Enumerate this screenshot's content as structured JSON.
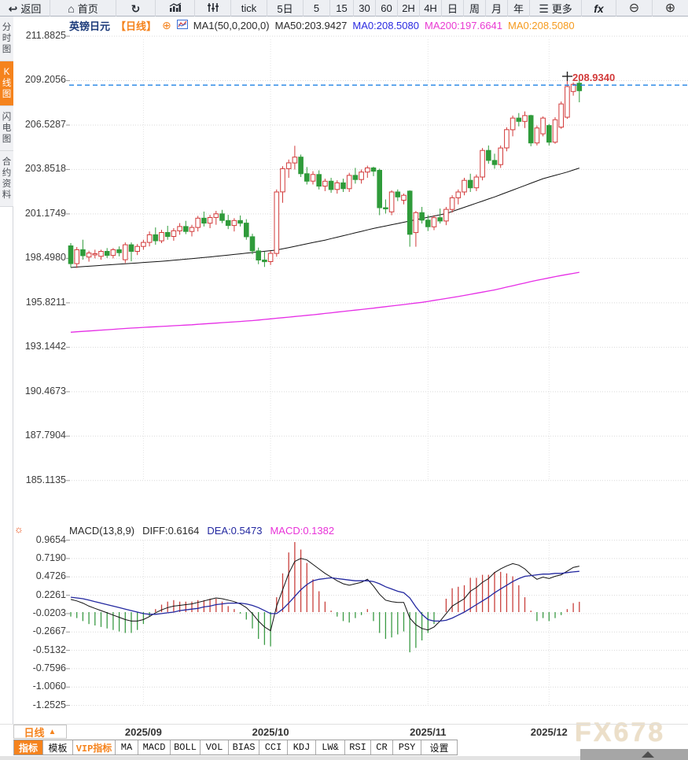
{
  "toolbar": {
    "items": [
      {
        "id": "back",
        "icon": "back-icon",
        "glyph": "↩",
        "label": "返回"
      },
      {
        "id": "home",
        "icon": "home-icon",
        "glyph": "⌂",
        "label": "首页"
      },
      {
        "id": "refresh",
        "icon": "refresh-icon",
        "glyph": "↻",
        "label": ""
      },
      {
        "id": "bar-chart",
        "icon": "bar-chart-icon",
        "glyph": "svg-bars",
        "label": ""
      },
      {
        "id": "candle-chart",
        "icon": "candlestick-icon",
        "glyph": "svg-candles",
        "label": ""
      },
      {
        "id": "tick",
        "label": "tick"
      },
      {
        "id": "5d",
        "label": "5日"
      },
      {
        "id": "m5",
        "label": "5"
      },
      {
        "id": "m15",
        "label": "15"
      },
      {
        "id": "m30",
        "label": "30"
      },
      {
        "id": "m60",
        "label": "60"
      },
      {
        "id": "h2",
        "label": "2H"
      },
      {
        "id": "h4",
        "label": "4H"
      },
      {
        "id": "day",
        "label": "日"
      },
      {
        "id": "week",
        "label": "周"
      },
      {
        "id": "month",
        "label": "月"
      },
      {
        "id": "year",
        "label": "年"
      },
      {
        "id": "more",
        "icon": "menu-icon",
        "glyph": "☰",
        "label": "更多"
      },
      {
        "id": "fx",
        "label": "fx"
      },
      {
        "id": "zoom-out",
        "icon": "zoom-out-icon",
        "glyph": "⊖",
        "label": ""
      },
      {
        "id": "zoom-in",
        "icon": "zoom-in-icon",
        "glyph": "⊕",
        "label": ""
      }
    ]
  },
  "sidebar": {
    "items": [
      {
        "id": "fenshi",
        "label": "分时图",
        "active": false
      },
      {
        "id": "kline",
        "label": "K线图",
        "active": true
      },
      {
        "id": "flash",
        "label": "闪电图",
        "active": false
      },
      {
        "id": "contract-info",
        "label": "合约资料",
        "active": false
      }
    ]
  },
  "chart_header": {
    "symbol": "英镑日元",
    "period": "【日线】",
    "ma_formula": "MA1(50,0,200,0)",
    "ma50": "MA50:203.9427",
    "ma0_blue": "MA0:208.5080",
    "ma200": "MA200:197.6641",
    "ma0_orange": "MA0:208.5080"
  },
  "macd_header": {
    "formula": "MACD(13,8,9)",
    "diff": "DIFF:0.6164",
    "dea": "DEA:0.5473",
    "macd": "MACD:0.1382"
  },
  "period_selector": {
    "label": "日线",
    "arrow": "▲"
  },
  "bottom_tabs": [
    {
      "id": "zhibiao",
      "label": "指标",
      "state": "active"
    },
    {
      "id": "moban",
      "label": "模板",
      "state": "normal"
    },
    {
      "id": "vip-zhibiao",
      "label": "VIP指标",
      "state": "vip"
    },
    {
      "id": "ma",
      "label": "MA",
      "state": "normal"
    },
    {
      "id": "macd",
      "label": "MACD",
      "state": "normal"
    },
    {
      "id": "boll",
      "label": "BOLL",
      "state": "normal"
    },
    {
      "id": "vol",
      "label": "VOL",
      "state": "normal"
    },
    {
      "id": "bias",
      "label": "BIAS",
      "state": "normal"
    },
    {
      "id": "cci",
      "label": "CCI",
      "state": "normal"
    },
    {
      "id": "kdj",
      "label": "KDJ",
      "state": "normal"
    },
    {
      "id": "lwr",
      "label": "LW&",
      "state": "normal"
    },
    {
      "id": "rsi",
      "label": "RSI",
      "state": "normal"
    },
    {
      "id": "cr",
      "label": "CR",
      "state": "normal"
    },
    {
      "id": "psy",
      "label": "PSY",
      "state": "normal"
    },
    {
      "id": "shezhi",
      "label": "设置",
      "state": "normal"
    }
  ],
  "watermark": "FX678",
  "colors": {
    "accent_orange": "#f5831d",
    "candle_up": "#d23a3a",
    "candle_down": "#2f9b3a",
    "ma50_line": "#111111",
    "ma200_line": "#e62ee6",
    "diff_line": "#111111",
    "dea_line": "#2328a0",
    "hist_up": "#c9403c",
    "hist_down": "#3a9a44",
    "last_price_line": "#1f82e5",
    "last_price_text": "#d23a3a",
    "grid": "#d9d9d9"
  },
  "chart_data": [
    {
      "type": "candlestick",
      "title": "英镑日元 日线",
      "ylabel": "price",
      "y_ticks": [
        211.8825,
        209.2056,
        206.5287,
        203.8518,
        201.1749,
        198.498,
        195.8211,
        193.1442,
        190.4673,
        187.7904,
        185.1135
      ],
      "x_labels": [
        {
          "label": "2025/09",
          "index": 12
        },
        {
          "label": "2025/10",
          "index": 33
        },
        {
          "label": "2025/11",
          "index": 59
        },
        {
          "label": "2025/12",
          "index": 79
        }
      ],
      "last_price": 208.934,
      "last_price_label": "208.9340",
      "candles": [
        [
          199.25,
          199.42,
          197.95,
          198.18
        ],
        [
          198.18,
          199.18,
          197.92,
          199.02
        ],
        [
          199.02,
          199.62,
          198.42,
          198.66
        ],
        [
          198.58,
          198.96,
          198.3,
          198.82
        ],
        [
          198.72,
          199.02,
          198.5,
          198.78
        ],
        [
          198.62,
          199.02,
          198.42,
          198.92
        ],
        [
          198.92,
          199.12,
          198.52,
          198.68
        ],
        [
          198.68,
          199.12,
          198.5,
          199.02
        ],
        [
          199.02,
          199.22,
          198.62,
          198.84
        ],
        [
          198.42,
          199.46,
          198.22,
          199.32
        ],
        [
          199.32,
          199.46,
          198.32,
          198.92
        ],
        [
          198.92,
          199.36,
          198.7,
          199.22
        ],
        [
          199.22,
          199.62,
          199.02,
          199.46
        ],
        [
          199.46,
          200.12,
          199.22,
          199.92
        ],
        [
          199.92,
          200.36,
          199.32,
          199.56
        ],
        [
          199.56,
          200.22,
          199.42,
          200.06
        ],
        [
          200.06,
          200.46,
          199.62,
          199.82
        ],
        [
          199.82,
          200.32,
          199.56,
          200.16
        ],
        [
          200.16,
          200.62,
          199.92,
          200.42
        ],
        [
          200.42,
          200.76,
          199.96,
          200.12
        ],
        [
          200.12,
          200.52,
          199.82,
          200.36
        ],
        [
          200.36,
          201.06,
          200.12,
          200.92
        ],
        [
          200.92,
          201.32,
          200.42,
          200.62
        ],
        [
          200.62,
          201.12,
          200.32,
          200.96
        ],
        [
          200.96,
          201.36,
          200.52,
          201.18
        ],
        [
          201.18,
          201.42,
          200.62,
          200.78
        ],
        [
          200.78,
          201.12,
          200.26,
          200.48
        ],
        [
          200.48,
          200.92,
          200.12,
          200.78
        ],
        [
          200.78,
          201.08,
          200.42,
          200.62
        ],
        [
          200.62,
          200.86,
          199.62,
          199.8
        ],
        [
          199.8,
          199.98,
          198.75,
          198.95
        ],
        [
          198.95,
          199.15,
          198.15,
          198.4
        ],
        [
          198.4,
          198.9,
          197.98,
          198.3
        ],
        [
          198.3,
          198.95,
          198.1,
          198.8
        ],
        [
          198.8,
          202.65,
          198.6,
          202.5
        ],
        [
          202.5,
          204.05,
          201.85,
          203.9
        ],
        [
          203.9,
          204.45,
          203.35,
          204.25
        ],
        [
          204.25,
          205.28,
          203.85,
          204.6
        ],
        [
          204.6,
          204.75,
          203.4,
          203.6
        ],
        [
          203.6,
          204.0,
          202.95,
          203.15
        ],
        [
          203.15,
          203.75,
          202.95,
          203.55
        ],
        [
          203.55,
          203.8,
          202.65,
          202.85
        ],
        [
          202.85,
          203.3,
          202.55,
          203.15
        ],
        [
          203.15,
          203.35,
          202.45,
          202.65
        ],
        [
          202.65,
          203.2,
          202.4,
          203.05
        ],
        [
          203.05,
          203.3,
          202.5,
          202.7
        ],
        [
          202.7,
          203.65,
          202.5,
          203.5
        ],
        [
          203.5,
          203.95,
          203.0,
          203.25
        ],
        [
          203.25,
          203.85,
          203.0,
          203.7
        ],
        [
          203.7,
          204.08,
          203.35,
          203.95
        ],
        [
          203.95,
          204.02,
          203.45,
          203.75
        ],
        [
          203.8,
          203.9,
          201.1,
          201.55
        ],
        [
          201.55,
          202.05,
          201.2,
          201.5
        ],
        [
          201.3,
          202.6,
          201.1,
          202.5
        ],
        [
          202.5,
          202.65,
          201.95,
          202.2
        ],
        [
          202.0,
          202.4,
          201.75,
          202.3
        ],
        [
          202.55,
          202.6,
          199.2,
          199.95
        ],
        [
          200.05,
          201.35,
          199.2,
          201.25
        ],
        [
          201.25,
          201.6,
          200.6,
          200.8
        ],
        [
          200.8,
          201.1,
          200.15,
          200.4
        ],
        [
          200.4,
          201.1,
          200.2,
          200.95
        ],
        [
          200.95,
          201.5,
          200.6,
          200.75
        ],
        [
          200.75,
          201.6,
          200.5,
          201.45
        ],
        [
          201.45,
          202.3,
          201.25,
          202.15
        ],
        [
          202.15,
          202.65,
          201.75,
          202.5
        ],
        [
          202.5,
          203.35,
          202.3,
          203.2
        ],
        [
          203.2,
          203.6,
          202.5,
          202.75
        ],
        [
          202.75,
          203.55,
          202.55,
          203.4
        ],
        [
          203.4,
          205.15,
          203.2,
          205.0
        ],
        [
          205.0,
          205.3,
          204.2,
          204.4
        ],
        [
          204.4,
          204.8,
          203.9,
          204.15
        ],
        [
          204.15,
          205.3,
          203.95,
          205.15
        ],
        [
          205.15,
          206.4,
          204.95,
          206.25
        ],
        [
          206.25,
          207.1,
          205.85,
          206.95
        ],
        [
          206.95,
          207.25,
          206.45,
          206.75
        ],
        [
          206.75,
          207.35,
          206.35,
          207.1
        ],
        [
          207.1,
          207.15,
          205.25,
          205.45
        ],
        [
          205.45,
          206.5,
          205.3,
          206.35
        ],
        [
          206.0,
          207.05,
          205.85,
          206.95
        ],
        [
          206.5,
          206.6,
          205.3,
          205.5
        ],
        [
          205.5,
          207.0,
          205.4,
          206.85
        ],
        [
          206.4,
          207.95,
          206.3,
          207.8
        ],
        [
          207.0,
          209.28,
          206.9,
          208.85
        ],
        [
          208.55,
          209.1,
          208.3,
          208.98
        ],
        [
          209.05,
          209.4,
          207.9,
          208.6
        ]
      ],
      "ma50_points": [
        [
          0,
          197.95
        ],
        [
          8,
          198.15
        ],
        [
          16,
          198.35
        ],
        [
          24,
          198.62
        ],
        [
          30,
          198.85
        ],
        [
          34,
          199.0
        ],
        [
          38,
          199.3
        ],
        [
          42,
          199.6
        ],
        [
          46,
          199.95
        ],
        [
          50,
          200.3
        ],
        [
          54,
          200.6
        ],
        [
          58,
          200.9
        ],
        [
          62,
          201.2
        ],
        [
          66,
          201.7
        ],
        [
          70,
          202.2
        ],
        [
          74,
          202.75
        ],
        [
          78,
          203.3
        ],
        [
          82,
          203.7
        ],
        [
          84,
          203.94
        ]
      ],
      "ma200_points": [
        [
          0,
          194.05
        ],
        [
          10,
          194.3
        ],
        [
          20,
          194.5
        ],
        [
          30,
          194.75
        ],
        [
          40,
          195.1
        ],
        [
          50,
          195.5
        ],
        [
          58,
          195.85
        ],
        [
          64,
          196.2
        ],
        [
          70,
          196.6
        ],
        [
          76,
          197.1
        ],
        [
          80,
          197.4
        ],
        [
          84,
          197.66
        ]
      ]
    },
    {
      "type": "macd",
      "params": [
        13,
        8,
        9
      ],
      "y_ticks": [
        0.9654,
        0.719,
        0.4726,
        0.2261,
        -0.0203,
        -0.2667,
        -0.5132,
        -0.7596,
        -1.006,
        -1.2525
      ],
      "diff_end": 0.6164,
      "dea_end": 0.5473,
      "macd_end": 0.1382,
      "diff": [
        0.17,
        0.15,
        0.12,
        0.08,
        0.05,
        0.02,
        -0.01,
        -0.04,
        -0.07,
        -0.1,
        -0.12,
        -0.12,
        -0.1,
        -0.06,
        -0.01,
        0.03,
        0.06,
        0.08,
        0.09,
        0.1,
        0.11,
        0.13,
        0.15,
        0.17,
        0.19,
        0.18,
        0.16,
        0.14,
        0.11,
        0.06,
        -0.02,
        -0.12,
        -0.2,
        -0.25,
        0.08,
        0.3,
        0.52,
        0.68,
        0.72,
        0.7,
        0.64,
        0.58,
        0.52,
        0.47,
        0.42,
        0.38,
        0.36,
        0.38,
        0.4,
        0.44,
        0.35,
        0.24,
        0.16,
        0.14,
        0.13,
        0.13,
        -0.08,
        -0.17,
        -0.22,
        -0.24,
        -0.2,
        -0.12,
        -0.02,
        0.08,
        0.13,
        0.18,
        0.28,
        0.33,
        0.4,
        0.45,
        0.53,
        0.58,
        0.62,
        0.65,
        0.63,
        0.58,
        0.5,
        0.44,
        0.47,
        0.45,
        0.48,
        0.5,
        0.55,
        0.6,
        0.6164
      ],
      "dea": [
        0.2,
        0.19,
        0.18,
        0.16,
        0.14,
        0.12,
        0.1,
        0.08,
        0.06,
        0.04,
        0.02,
        0.0,
        -0.02,
        -0.03,
        -0.03,
        -0.02,
        -0.01,
        0.0,
        0.02,
        0.03,
        0.04,
        0.05,
        0.07,
        0.08,
        0.1,
        0.11,
        0.12,
        0.12,
        0.12,
        0.11,
        0.09,
        0.06,
        0.02,
        -0.02,
        -0.02,
        0.04,
        0.12,
        0.21,
        0.3,
        0.37,
        0.42,
        0.44,
        0.45,
        0.46,
        0.45,
        0.44,
        0.43,
        0.42,
        0.42,
        0.42,
        0.41,
        0.38,
        0.34,
        0.31,
        0.28,
        0.26,
        0.19,
        0.07,
        -0.03,
        -0.1,
        -0.12,
        -0.12,
        -0.11,
        -0.08,
        -0.04,
        0.0,
        0.05,
        0.1,
        0.15,
        0.2,
        0.26,
        0.31,
        0.36,
        0.41,
        0.45,
        0.48,
        0.49,
        0.5,
        0.51,
        0.51,
        0.52,
        0.52,
        0.53,
        0.54,
        0.5473
      ]
    }
  ]
}
